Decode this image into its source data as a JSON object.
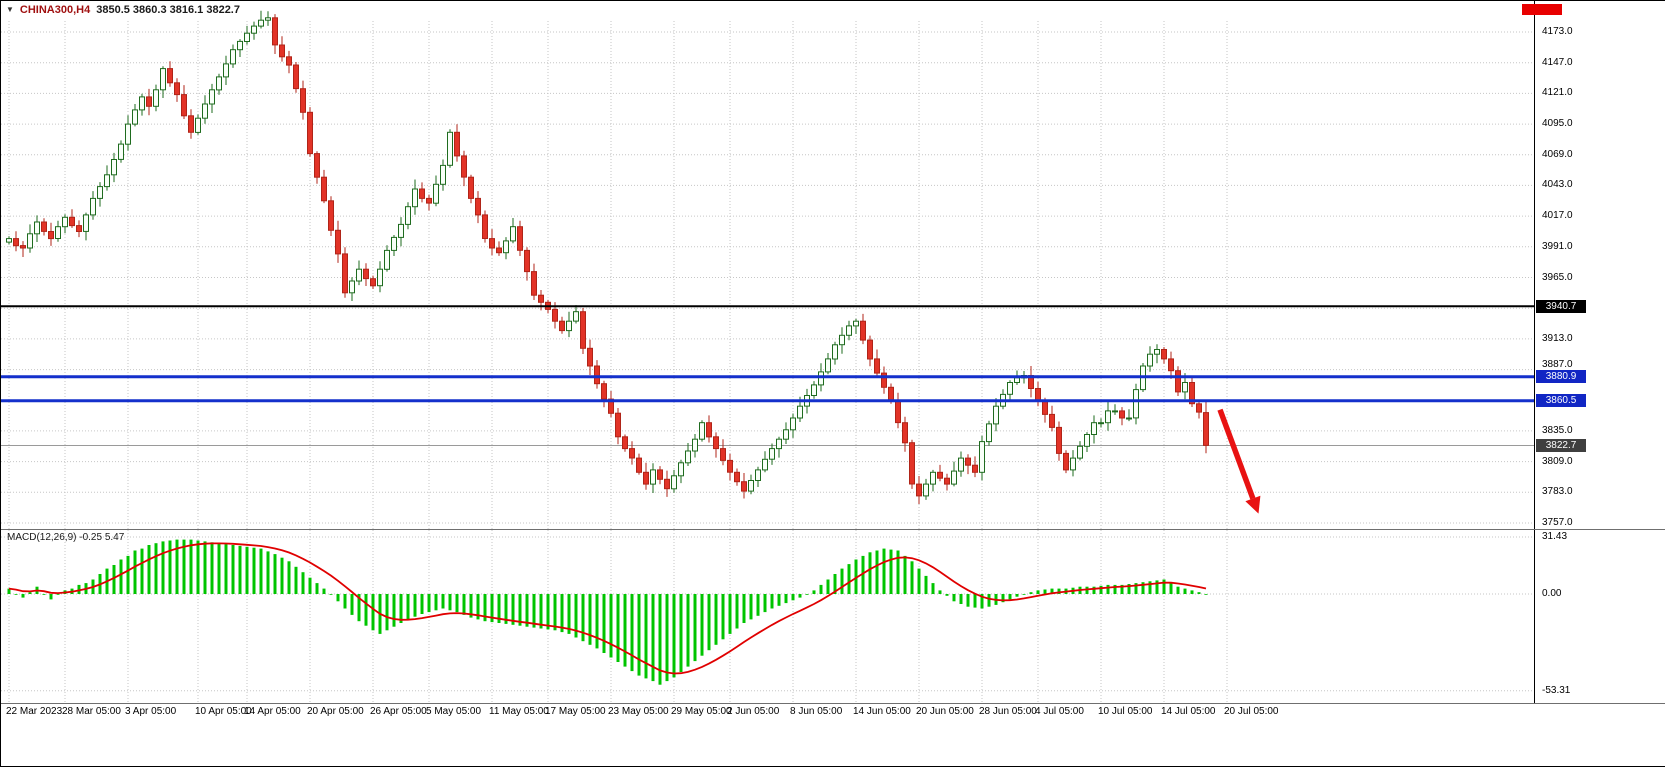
{
  "header": {
    "symbol": "CHINA300,H4",
    "ohlc": "3850.5 3860.3 3816.1 3822.7"
  },
  "macd": {
    "label": "MACD(12,26,9) -0.25 5.47"
  },
  "chart_data": {
    "type": "candlestick",
    "title": "CHINA300,H4",
    "symbol": "CHINA300",
    "timeframe": "H4",
    "current_bar": {
      "open": 3850.5,
      "high": 3860.3,
      "low": 3816.1,
      "close": 3822.7
    },
    "price_axis_ticks": [
      4173.0,
      4147.0,
      4121.0,
      4095.0,
      4069.0,
      4043.0,
      4017.0,
      3991.0,
      3965.0,
      3913.0,
      3887.0,
      3835.0,
      3809.0,
      3783.0,
      3757.0
    ],
    "levels": [
      {
        "price": 3940.7,
        "line_color": "#000000",
        "tag_bg": "#000000",
        "line_width": 2
      },
      {
        "price": 3880.9,
        "line_color": "#1430cc",
        "tag_bg": "#1126c4",
        "line_width": 3
      },
      {
        "price": 3860.5,
        "line_color": "#1430cc",
        "tag_bg": "#1126c4",
        "line_width": 3
      }
    ],
    "current_price_tag": {
      "price": 3822.7,
      "tag_bg": "#3f3f3f",
      "line_color": "#9a9a9a"
    },
    "time_ticks": [
      {
        "label": "22 Mar 2023",
        "i": 0
      },
      {
        "label": "28 Mar 05:00",
        "i": 8
      },
      {
        "label": "3 Apr 05:00",
        "i": 17
      },
      {
        "label": "10 Apr 05:00",
        "i": 27
      },
      {
        "label": "14 Apr 05:00",
        "i": 34
      },
      {
        "label": "20 Apr 05:00",
        "i": 43
      },
      {
        "label": "26 Apr 05:00",
        "i": 52
      },
      {
        "label": "5 May 05:00",
        "i": 60
      },
      {
        "label": "11 May 05:00",
        "i": 69
      },
      {
        "label": "17 May 05:00",
        "i": 77
      },
      {
        "label": "23 May 05:00",
        "i": 86
      },
      {
        "label": "29 May 05:00",
        "i": 95
      },
      {
        "label": "2 Jun 05:00",
        "i": 103
      },
      {
        "label": "8 Jun 05:00",
        "i": 112
      },
      {
        "label": "14 Jun 05:00",
        "i": 121
      },
      {
        "label": "20 Jun 05:00",
        "i": 130
      },
      {
        "label": "28 Jun 05:00",
        "i": 139
      },
      {
        "label": "4 Jul 05:00",
        "i": 147
      },
      {
        "label": "10 Jul 05:00",
        "i": 156
      },
      {
        "label": "14 Jul 05:00",
        "i": 165
      },
      {
        "label": "20 Jul 05:00",
        "i": 174
      }
    ],
    "first_open": 3995,
    "candle_closes": [
      3998,
      3992,
      3990,
      4002,
      4012,
      4004,
      3998,
      4008,
      4016,
      4009,
      4004,
      4018,
      4032,
      4042,
      4052,
      4065,
      4078,
      4095,
      4107,
      4118,
      4110,
      4124,
      4142,
      4130,
      4120,
      4102,
      4088,
      4100,
      4112,
      4124,
      4135,
      4146,
      4158,
      4165,
      4172,
      4178,
      4183,
      4185,
      4162,
      4152,
      4145,
      4125,
      4105,
      4070,
      4050,
      4030,
      4005,
      3985,
      3952,
      3962,
      3972,
      3964,
      3958,
      3972,
      3988,
      3999,
      4010,
      4025,
      4040,
      4032,
      4028,
      4044,
      4060,
      4088,
      4068,
      4050,
      4032,
      4018,
      3998,
      3990,
      3986,
      3996,
      4008,
      3988,
      3970,
      3950,
      3944,
      3938,
      3928,
      3920,
      3928,
      3936,
      3905,
      3890,
      3875,
      3862,
      3850,
      3830,
      3820,
      3812,
      3800,
      3790,
      3802,
      3794,
      3786,
      3797,
      3808,
      3818,
      3828,
      3842,
      3830,
      3820,
      3810,
      3800,
      3792,
      3784,
      3793,
      3802,
      3811,
      3820,
      3828,
      3836,
      3846,
      3856,
      3865,
      3874,
      3885,
      3896,
      3908,
      3916,
      3924,
      3928,
      3912,
      3896,
      3884,
      3872,
      3860,
      3842,
      3825,
      3790,
      3780,
      3790,
      3800,
      3795,
      3790,
      3801,
      3812,
      3806,
      3800,
      3826,
      3841,
      3856,
      3866,
      3876,
      3880,
      3882,
      3871,
      3860,
      3849,
      3838,
      3816,
      3802,
      3812,
      3822,
      3832,
      3842,
      3842,
      3852,
      3852,
      3846,
      3846,
      3870,
      3890,
      3900,
      3904,
      3896,
      3886,
      3868,
      3876,
      3858,
      3851,
      3822.7
    ],
    "macd_axis_ticks": [
      "31.43",
      "0.00",
      "-53.31"
    ],
    "macd_values": [
      3,
      0,
      -2,
      1,
      4,
      0,
      -3,
      0,
      2,
      3,
      5,
      6,
      8,
      11,
      14,
      16,
      19,
      21,
      24,
      25,
      27,
      28,
      29,
      29.5,
      30,
      30,
      30,
      29.5,
      29,
      28.5,
      28,
      27.5,
      27,
      26.5,
      26,
      25.5,
      25,
      23.5,
      22,
      20,
      18,
      15,
      12,
      9,
      6,
      3,
      0,
      -4,
      -8,
      -11.5,
      -15,
      -17.5,
      -20,
      -22,
      -20,
      -18,
      -16,
      -14,
      -12.5,
      -11,
      -10,
      -9,
      -8,
      -9,
      -10,
      -11.5,
      -13,
      -14,
      -15,
      -15.5,
      -16,
      -16.5,
      -17,
      -17.5,
      -18,
      -18.5,
      -19,
      -19.5,
      -20,
      -21,
      -22,
      -24,
      -26,
      -28,
      -30,
      -32.5,
      -35,
      -37.5,
      -40,
      -42.5,
      -45,
      -46.5,
      -48,
      -50,
      -48,
      -46,
      -43,
      -40,
      -37,
      -34,
      -31,
      -28,
      -25,
      -22,
      -19,
      -16,
      -14,
      -12,
      -10,
      -8,
      -6.5,
      -5,
      -3.5,
      -2,
      0,
      2,
      5,
      8,
      11,
      14,
      16.5,
      19,
      21,
      23,
      24,
      25,
      24.5,
      24,
      21,
      18,
      14,
      10,
      6,
      2,
      -1,
      -4,
      -5.5,
      -7,
      -7.5,
      -8,
      -7,
      -6,
      -4.5,
      -3,
      -1.5,
      0,
      1,
      2,
      2.5,
      3,
      3,
      3,
      3.5,
      4,
      4,
      4,
      4.5,
      5,
      5,
      5,
      5.5,
      6,
      6.5,
      7,
      7.5,
      8,
      6,
      4,
      3,
      2,
      1,
      -0.25
    ],
    "annotation": {
      "type": "arrow",
      "color": "#e81212",
      "from": {
        "i": 173,
        "price": 3853
      },
      "to": {
        "i": 178.5,
        "price": 3765
      }
    },
    "colors": {
      "bull_fill": "#f8fff8",
      "bull_stroke": "#1e6b1e",
      "bear_fill": "#e23327",
      "bear_stroke": "#b02418",
      "histogram": "#00c400",
      "signal_line": "#e00000",
      "grid": "#c6c6c6"
    }
  }
}
